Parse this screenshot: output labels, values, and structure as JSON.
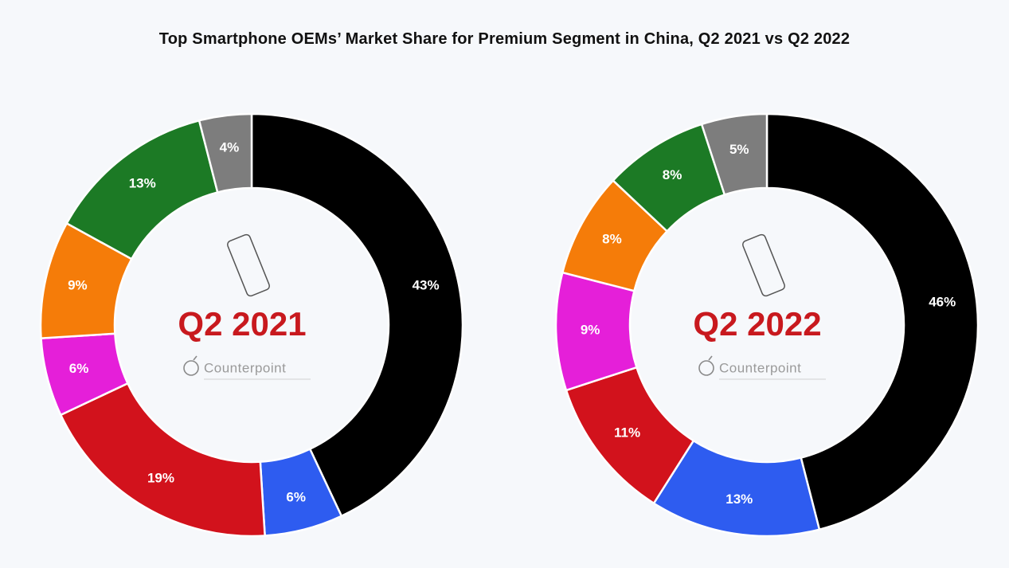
{
  "title": "Top Smartphone OEMs’ Market Share for Premium Segment in China, Q2 2021 vs Q2 2022",
  "brand": "Counterpoint",
  "center_label_color": "#c8191e",
  "chart_data": [
    {
      "type": "pie",
      "donut": true,
      "period": "Q2 2021",
      "slices": [
        {
          "value": 43,
          "label": "43%",
          "color": "#000000"
        },
        {
          "value": 6,
          "label": "6%",
          "color": "#2e5cf0"
        },
        {
          "value": 19,
          "label": "19%",
          "color": "#d2121c"
        },
        {
          "value": 6,
          "label": "6%",
          "color": "#e51fd9"
        },
        {
          "value": 9,
          "label": "9%",
          "color": "#f57c09"
        },
        {
          "value": 13,
          "label": "13%",
          "color": "#1c7a25"
        },
        {
          "value": 4,
          "label": "4%",
          "color": "#7d7d7d"
        }
      ]
    },
    {
      "type": "pie",
      "donut": true,
      "period": "Q2 2022",
      "slices": [
        {
          "value": 46,
          "label": "46%",
          "color": "#000000"
        },
        {
          "value": 13,
          "label": "13%",
          "color": "#2e5cf0"
        },
        {
          "value": 11,
          "label": "11%",
          "color": "#d2121c"
        },
        {
          "value": 9,
          "label": "9%",
          "color": "#e51fd9"
        },
        {
          "value": 8,
          "label": "8%",
          "color": "#f57c09"
        },
        {
          "value": 8,
          "label": "8%",
          "color": "#1c7a25"
        },
        {
          "value": 5,
          "label": "5%",
          "color": "#7d7d7d"
        }
      ]
    }
  ]
}
